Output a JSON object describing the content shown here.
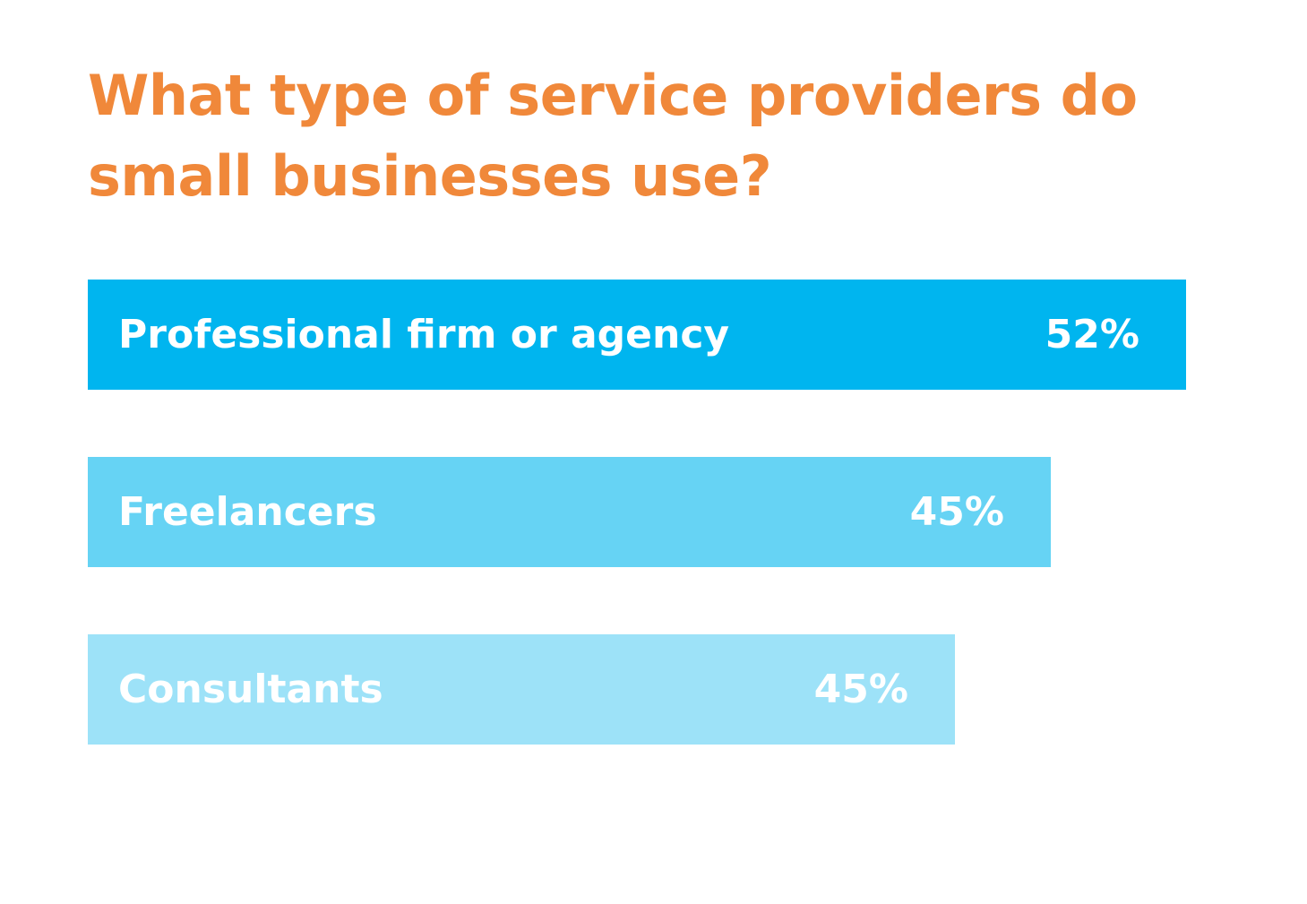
{
  "chart_data": {
    "type": "bar",
    "orientation": "horizontal",
    "title": "What type of service providers do small businesses use?",
    "categories": [
      "Professional firm or agency",
      "Freelancers",
      "Consultants"
    ],
    "values": [
      52,
      45,
      45
    ],
    "value_labels": [
      "52%",
      "45%",
      "45%"
    ],
    "bar_colors": [
      "#00b5ef",
      "#66d3f4",
      "#9de2f8"
    ],
    "title_color": "#f0883a",
    "grid": false,
    "legend": "none"
  }
}
